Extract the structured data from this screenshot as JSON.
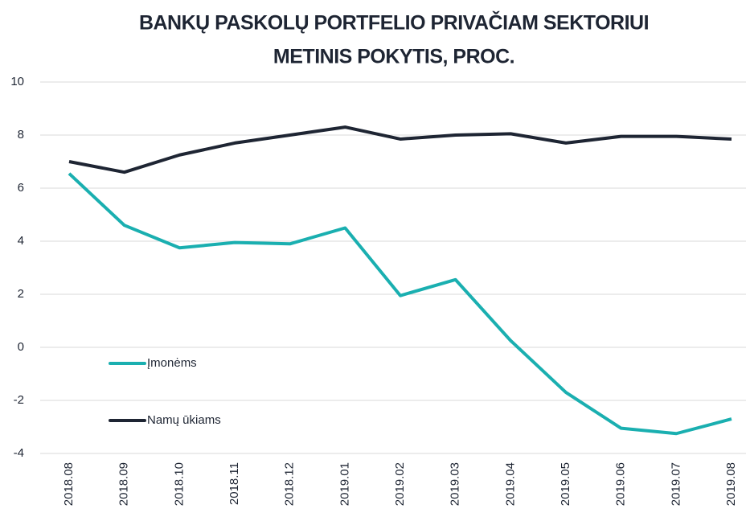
{
  "chart_data": {
    "type": "line",
    "title": [
      "BANKŲ PASKOLŲ PORTFELIO PRIVAČIAM SEKTORIUI",
      "METINIS POKYTIS, PROC."
    ],
    "categories": [
      "2018.08",
      "2018.09",
      "2018.10",
      "2018.11",
      "2018.12",
      "2019.01",
      "2019.02",
      "2019.03",
      "2019.04",
      "2019.05",
      "2019.06",
      "2019.07",
      "2019.08"
    ],
    "series": [
      {
        "name": "Įmonėms",
        "color": "#1aafb0",
        "values": [
          6.55,
          4.6,
          3.75,
          3.95,
          3.9,
          4.5,
          1.95,
          2.55,
          0.25,
          -1.7,
          -3.05,
          -3.25,
          -2.7
        ]
      },
      {
        "name": "Namų ūkiams",
        "color": "#1e2533",
        "values": [
          7.0,
          6.6,
          7.25,
          7.7,
          8.0,
          8.3,
          7.85,
          8.0,
          8.05,
          7.7,
          7.95,
          7.95,
          7.85
        ]
      }
    ],
    "ylim": [
      -4,
      10
    ],
    "yticks": [
      -4,
      -2,
      0,
      2,
      4,
      6,
      8,
      10
    ],
    "grid": true,
    "legend": "left"
  }
}
